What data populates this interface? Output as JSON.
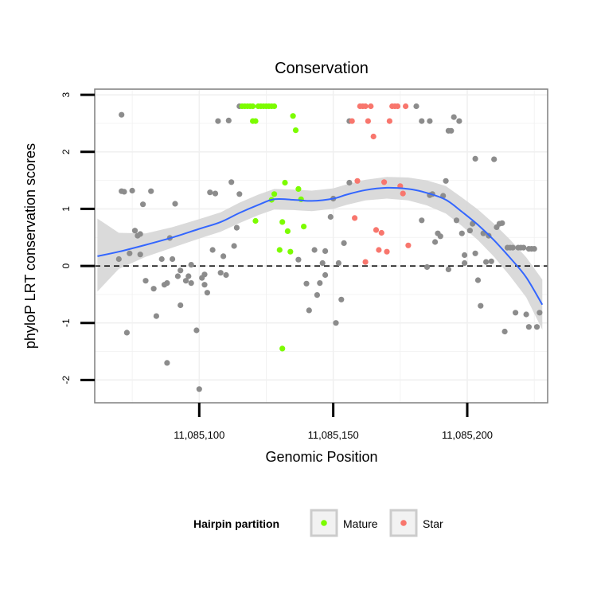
{
  "chart_data": {
    "type": "scatter",
    "title": "Conservation",
    "xlabel": "Genomic Position",
    "ylabel": "phyloP LRT conservation scores",
    "xlim": [
      11085061,
      11085230
    ],
    "ylim": [
      -2.4,
      3.1
    ],
    "xticks": [
      {
        "value": 11085100,
        "label": "11,085,100"
      },
      {
        "value": 11085150,
        "label": "11,085,150"
      },
      {
        "value": 11085200,
        "label": "11,085,200"
      }
    ],
    "yticks": [
      {
        "value": -2,
        "label": "-2"
      },
      {
        "value": -1,
        "label": "-1"
      },
      {
        "value": 0,
        "label": "0"
      },
      {
        "value": 1,
        "label": "1"
      },
      {
        "value": 2,
        "label": "2"
      },
      {
        "value": 3,
        "label": "3"
      }
    ],
    "reference_line": {
      "y": 0,
      "style": "dashed"
    },
    "grid": true,
    "legend": {
      "title": "Hairpin partition",
      "position": "bottom",
      "entries": [
        {
          "label": "Mature",
          "color": "#7CFC00"
        },
        {
          "label": "Star",
          "color": "#F8766D"
        }
      ]
    },
    "colors": {
      "other": "#8c8c8c",
      "Mature": "#7CFC00",
      "Star": "#F8766D",
      "smooth": "#3366FF",
      "ribbon": "#d6d6d6"
    },
    "series": [
      {
        "group": "other",
        "points": [
          [
            11085070,
            0.12
          ],
          [
            11085071,
            1.31
          ],
          [
            11085071,
            2.65
          ],
          [
            11085072,
            1.3
          ],
          [
            11085073,
            -1.17
          ],
          [
            11085074,
            0.22
          ],
          [
            11085075,
            1.32
          ],
          [
            11085076,
            0.62
          ],
          [
            11085077,
            0.53
          ],
          [
            11085078,
            0.2
          ],
          [
            11085078,
            0.56
          ],
          [
            11085079,
            1.08
          ],
          [
            11085080,
            -0.26
          ],
          [
            11085082,
            1.31
          ],
          [
            11085083,
            -0.4
          ],
          [
            11085084,
            -0.88
          ],
          [
            11085086,
            0.12
          ],
          [
            11085087,
            -0.33
          ],
          [
            11085088,
            -1.7
          ],
          [
            11085088,
            -0.3
          ],
          [
            11085089,
            0.49
          ],
          [
            11085090,
            0.12
          ],
          [
            11085091,
            1.09
          ],
          [
            11085092,
            -0.18
          ],
          [
            11085093,
            -0.69
          ],
          [
            11085093,
            -0.08
          ],
          [
            11085095,
            -0.26
          ],
          [
            11085096,
            -0.18
          ],
          [
            11085097,
            0.02
          ],
          [
            11085097,
            -0.3
          ],
          [
            11085099,
            -1.13
          ],
          [
            11085100,
            -2.16
          ],
          [
            11085101,
            -0.21
          ],
          [
            11085102,
            -0.33
          ],
          [
            11085102,
            -0.15
          ],
          [
            11085103,
            -0.47
          ],
          [
            11085104,
            1.29
          ],
          [
            11085105,
            0.28
          ],
          [
            11085106,
            1.27
          ],
          [
            11085107,
            2.54
          ],
          [
            11085108,
            -0.12
          ],
          [
            11085109,
            0.17
          ],
          [
            11085110,
            -0.16
          ],
          [
            11085111,
            2.55
          ],
          [
            11085112,
            1.47
          ],
          [
            11085113,
            0.35
          ],
          [
            11085114,
            0.67
          ],
          [
            11085115,
            1.26
          ],
          [
            11085115,
            2.8
          ],
          [
            11085137,
            0.11
          ],
          [
            11085140,
            -0.31
          ],
          [
            11085141,
            -0.78
          ],
          [
            11085143,
            0.28
          ],
          [
            11085144,
            -0.51
          ],
          [
            11085145,
            -0.3
          ],
          [
            11085146,
            0.05
          ],
          [
            11085147,
            -0.16
          ],
          [
            11085147,
            0.26
          ],
          [
            11085149,
            0.86
          ],
          [
            11085150,
            1.18
          ],
          [
            11085151,
            -1.0
          ],
          [
            11085152,
            0.05
          ],
          [
            11085153,
            -0.59
          ],
          [
            11085154,
            0.4
          ],
          [
            11085156,
            2.54
          ],
          [
            11085156,
            1.46
          ],
          [
            11085181,
            2.8
          ],
          [
            11085183,
            2.54
          ],
          [
            11085183,
            0.8
          ],
          [
            11085185,
            -0.02
          ],
          [
            11085186,
            1.24
          ],
          [
            11085186,
            2.54
          ],
          [
            11085187,
            1.26
          ],
          [
            11085188,
            0.42
          ],
          [
            11085189,
            0.57
          ],
          [
            11085190,
            0.52
          ],
          [
            11085191,
            1.23
          ],
          [
            11085192,
            1.49
          ],
          [
            11085193,
            2.37
          ],
          [
            11085193,
            -0.06
          ],
          [
            11085194,
            2.37
          ],
          [
            11085195,
            2.61
          ],
          [
            11085196,
            0.8
          ],
          [
            11085197,
            2.54
          ],
          [
            11085198,
            0.57
          ],
          [
            11085199,
            0.05
          ],
          [
            11085199,
            0.19
          ],
          [
            11085201,
            0.62
          ],
          [
            11085202,
            0.74
          ],
          [
            11085203,
            1.88
          ],
          [
            11085203,
            0.22
          ],
          [
            11085204,
            -0.25
          ],
          [
            11085205,
            -0.7
          ],
          [
            11085206,
            0.57
          ],
          [
            11085207,
            0.07
          ],
          [
            11085208,
            0.53
          ],
          [
            11085209,
            0.08
          ],
          [
            11085210,
            1.87
          ],
          [
            11085211,
            0.68
          ],
          [
            11085212,
            0.74
          ],
          [
            11085213,
            0.75
          ],
          [
            11085214,
            -1.15
          ],
          [
            11085215,
            0.32
          ],
          [
            11085216,
            0.32
          ],
          [
            11085217,
            0.32
          ],
          [
            11085218,
            -0.82
          ],
          [
            11085219,
            0.32
          ],
          [
            11085220,
            0.32
          ],
          [
            11085221,
            0.32
          ],
          [
            11085222,
            -0.85
          ],
          [
            11085223,
            -1.07
          ],
          [
            11085223,
            0.3
          ],
          [
            11085224,
            0.3
          ],
          [
            11085225,
            0.3
          ],
          [
            11085226,
            -1.07
          ],
          [
            11085227,
            -0.82
          ]
        ]
      },
      {
        "group": "Mature",
        "points": [
          [
            11085116,
            2.8
          ],
          [
            11085117,
            2.8
          ],
          [
            11085118,
            2.8
          ],
          [
            11085119,
            2.8
          ],
          [
            11085120,
            2.8
          ],
          [
            11085120,
            2.54
          ],
          [
            11085121,
            2.54
          ],
          [
            11085122,
            2.8
          ],
          [
            11085123,
            2.8
          ],
          [
            11085124,
            2.8
          ],
          [
            11085125,
            2.8
          ],
          [
            11085126,
            2.8
          ],
          [
            11085127,
            2.8
          ],
          [
            11085128,
            2.8
          ],
          [
            11085121,
            0.79
          ],
          [
            11085127,
            1.16
          ],
          [
            11085128,
            1.26
          ],
          [
            11085130,
            0.28
          ],
          [
            11085131,
            0.77
          ],
          [
            11085131,
            -1.45
          ],
          [
            11085132,
            1.46
          ],
          [
            11085133,
            0.61
          ],
          [
            11085134,
            0.25
          ],
          [
            11085135,
            2.63
          ],
          [
            11085136,
            2.38
          ],
          [
            11085137,
            1.35
          ],
          [
            11085138,
            1.17
          ],
          [
            11085139,
            0.69
          ]
        ]
      },
      {
        "group": "Star",
        "points": [
          [
            11085157,
            2.54
          ],
          [
            11085158,
            0.84
          ],
          [
            11085159,
            1.49
          ],
          [
            11085160,
            2.8
          ],
          [
            11085161,
            2.8
          ],
          [
            11085162,
            2.8
          ],
          [
            11085162,
            0.07
          ],
          [
            11085163,
            2.54
          ],
          [
            11085164,
            2.8
          ],
          [
            11085165,
            2.27
          ],
          [
            11085166,
            0.63
          ],
          [
            11085167,
            0.28
          ],
          [
            11085168,
            0.58
          ],
          [
            11085169,
            1.47
          ],
          [
            11085170,
            0.25
          ],
          [
            11085171,
            2.54
          ],
          [
            11085172,
            2.8
          ],
          [
            11085173,
            2.8
          ],
          [
            11085174,
            2.8
          ],
          [
            11085175,
            1.4
          ],
          [
            11085176,
            1.27
          ],
          [
            11085177,
            2.8
          ],
          [
            11085178,
            0.36
          ]
        ]
      }
    ],
    "smooth": [
      [
        11085062,
        0.17
      ],
      [
        11085070,
        0.25
      ],
      [
        11085080,
        0.37
      ],
      [
        11085090,
        0.5
      ],
      [
        11085100,
        0.65
      ],
      [
        11085108,
        0.77
      ],
      [
        11085115,
        0.93
      ],
      [
        11085122,
        1.07
      ],
      [
        11085128,
        1.17
      ],
      [
        11085135,
        1.16
      ],
      [
        11085142,
        1.14
      ],
      [
        11085150,
        1.18
      ],
      [
        11085155,
        1.25
      ],
      [
        11085162,
        1.33
      ],
      [
        11085170,
        1.37
      ],
      [
        11085178,
        1.35
      ],
      [
        11085185,
        1.28
      ],
      [
        11085192,
        1.16
      ],
      [
        11085198,
        0.95
      ],
      [
        11085204,
        0.72
      ],
      [
        11085210,
        0.45
      ],
      [
        11085216,
        0.14
      ],
      [
        11085222,
        -0.2
      ],
      [
        11085228,
        -0.68
      ]
    ],
    "ribbon": [
      [
        11085062,
        -0.45,
        0.83
      ],
      [
        11085070,
        -0.05,
        0.58
      ],
      [
        11085080,
        0.16,
        0.57
      ],
      [
        11085090,
        0.32,
        0.68
      ],
      [
        11085100,
        0.48,
        0.82
      ],
      [
        11085108,
        0.6,
        0.94
      ],
      [
        11085115,
        0.75,
        1.11
      ],
      [
        11085122,
        0.89,
        1.25
      ],
      [
        11085128,
        0.99,
        1.35
      ],
      [
        11085135,
        0.98,
        1.34
      ],
      [
        11085142,
        0.96,
        1.32
      ],
      [
        11085150,
        1.0,
        1.36
      ],
      [
        11085155,
        1.07,
        1.43
      ],
      [
        11085162,
        1.15,
        1.51
      ],
      [
        11085170,
        1.18,
        1.56
      ],
      [
        11085178,
        1.15,
        1.55
      ],
      [
        11085185,
        1.06,
        1.5
      ],
      [
        11085192,
        0.92,
        1.4
      ],
      [
        11085198,
        0.7,
        1.2
      ],
      [
        11085204,
        0.45,
        0.99
      ],
      [
        11085210,
        0.16,
        0.74
      ],
      [
        11085216,
        -0.18,
        0.46
      ],
      [
        11085222,
        -0.55,
        0.15
      ],
      [
        11085228,
        -1.12,
        -0.24
      ]
    ]
  }
}
